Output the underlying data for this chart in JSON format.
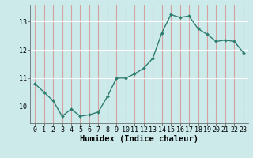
{
  "x": [
    0,
    1,
    2,
    3,
    4,
    5,
    6,
    7,
    8,
    9,
    10,
    11,
    12,
    13,
    14,
    15,
    16,
    17,
    18,
    19,
    20,
    21,
    22,
    23
  ],
  "y": [
    10.8,
    10.5,
    10.2,
    9.65,
    9.9,
    9.65,
    9.7,
    9.8,
    10.35,
    11.0,
    11.0,
    11.15,
    11.35,
    11.7,
    12.6,
    13.25,
    13.15,
    13.2,
    12.75,
    12.55,
    12.3,
    12.35,
    12.3,
    11.9
  ],
  "line_color": "#2e7d6e",
  "marker": "D",
  "marker_size": 2.0,
  "bg_color": "#cceaea",
  "grid_h_color": "#ffffff",
  "grid_v_color": "#d4a0a0",
  "xlabel": "Humidex (Indice chaleur)",
  "ylim": [
    9.4,
    13.6
  ],
  "xlim": [
    -0.5,
    23.5
  ],
  "yticks": [
    10,
    11,
    12,
    13
  ],
  "xticks": [
    0,
    1,
    2,
    3,
    4,
    5,
    6,
    7,
    8,
    9,
    10,
    11,
    12,
    13,
    14,
    15,
    16,
    17,
    18,
    19,
    20,
    21,
    22,
    23
  ],
  "tick_fontsize": 6.0,
  "xlabel_fontsize": 7.5,
  "line_width": 1.0
}
